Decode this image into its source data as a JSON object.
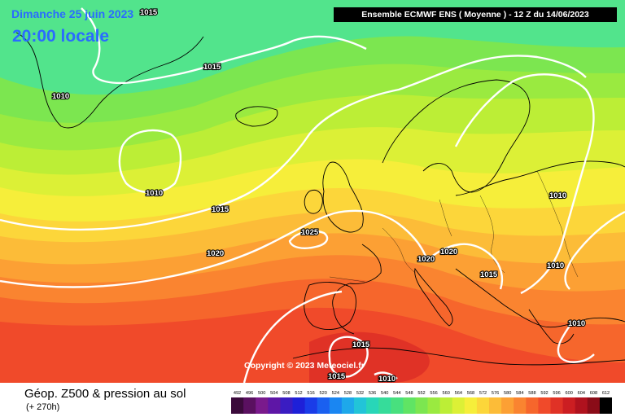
{
  "title": {
    "date": "Dimanche 25 juin 2023",
    "time": "20:00 locale"
  },
  "header": "Ensemble ECMWF ENS  ( Moyenne )  -  12 Z du 14/06/2023",
  "copyright": "Copyright © 2023 Meteociel.fr",
  "legend": {
    "title": "Géop. Z500 & pression au sol",
    "subtitle": "(+ 270h)",
    "scale_values": [
      "492",
      "496",
      "500",
      "504",
      "508",
      "512",
      "516",
      "520",
      "524",
      "528",
      "532",
      "536",
      "540",
      "544",
      "548",
      "552",
      "556",
      "560",
      "564",
      "568",
      "572",
      "576",
      "580",
      "584",
      "588",
      "592",
      "596",
      "600",
      "604",
      "608",
      "612"
    ],
    "scale_colors": [
      "#3b0a3b",
      "#5a1060",
      "#7a1a8c",
      "#5e16a6",
      "#3a1cc2",
      "#1e20d8",
      "#1a3ce8",
      "#1a60f0",
      "#1a86f2",
      "#1ea8ea",
      "#22c4d8",
      "#28d6b8",
      "#36dc9a",
      "#48e07e",
      "#60e464",
      "#7ce650",
      "#9aea40",
      "#bcee36",
      "#dcf036",
      "#f6ee3a",
      "#fcd63a",
      "#fcbc38",
      "#fca034",
      "#fa8430",
      "#f6662c",
      "#f04a2a",
      "#e03226",
      "#cc1e22",
      "#b0121e",
      "#8a0c18",
      "#000000"
    ]
  },
  "isobar_labels": [
    "1015",
    "1015",
    "1010",
    "1010",
    "1015",
    "1020",
    "1025",
    "1020",
    "1020",
    "1010",
    "1015",
    "1010",
    "1010",
    "1015",
    "1015",
    "1010"
  ],
  "colors": {
    "isobar": "#ffffff",
    "title_text": "#2a6bff",
    "coast": "#000000"
  }
}
